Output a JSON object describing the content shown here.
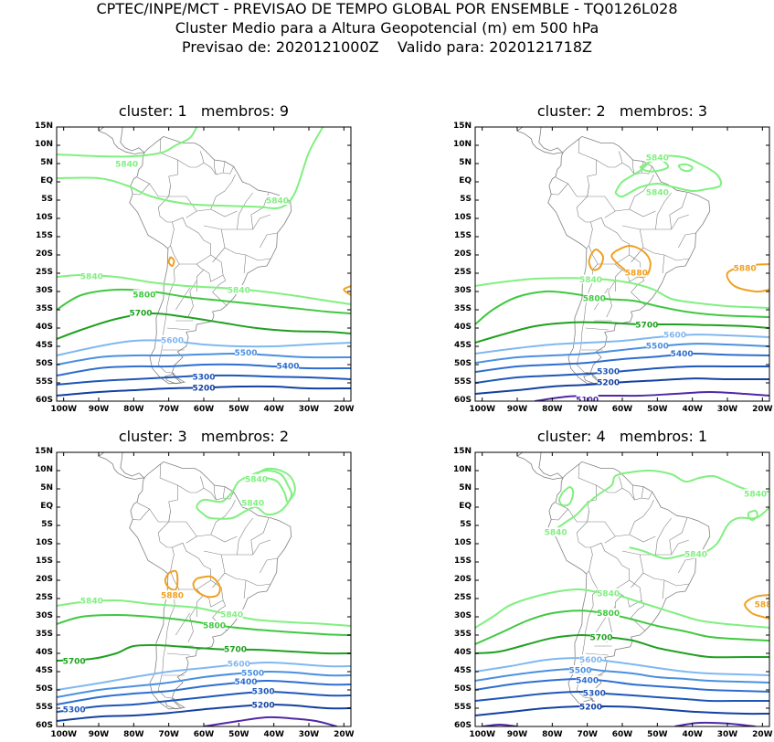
{
  "header": {
    "line1": "CPTEC/INPE/MCT - PREVISAO DE TEMPO GLOBAL POR ENSEMBLE - TQ0126L028",
    "line2": "Cluster Medio para a Altura Geopotencial (m) em 500 hPa",
    "line3": "Previsao de: 2020121000Z    Valido para: 2020121718Z"
  },
  "axes": {
    "lat_labels": [
      "15N",
      "10N",
      "5N",
      "EQ",
      "5S",
      "10S",
      "15S",
      "20S",
      "25S",
      "30S",
      "35S",
      "40S",
      "45S",
      "50S",
      "55S",
      "60S"
    ],
    "lon_labels": [
      "100W",
      "90W",
      "80W",
      "70W",
      "60W",
      "50W",
      "40W",
      "30W",
      "20W"
    ]
  },
  "colors": {
    "c5840": "#80f080",
    "c5800": "#40c840",
    "c5700": "#20a020",
    "c5600": "#80b8f0",
    "c5500": "#4a90e0",
    "c5400": "#2e6ed0",
    "c5300": "#1e56b8",
    "c5200": "#1440a0",
    "c5100": "#5028a8",
    "c5880": "#f0a020",
    "map": "#808080"
  },
  "panels": [
    {
      "title": "cluster: 1   membros: 9",
      "labels": {
        "l5840a": "5840",
        "l5840b": "5840",
        "l5840c": "5840",
        "l5840d": "5840",
        "l5800": "5800",
        "l5700": "5700",
        "l5600": "5600",
        "l5500": "5500",
        "l5400": "5400",
        "l5300": "5300",
        "l5200": "5200"
      }
    },
    {
      "title": "cluster: 2   membros: 3",
      "labels": {
        "l5840a": "5840",
        "l5840b": "5840",
        "l5840c": "5840",
        "l5880a": "5880",
        "l5880b": "5880",
        "l5800": "5800",
        "l5700": "5700",
        "l5600": "5600",
        "l5500": "5500",
        "l5400": "5400",
        "l5300": "5300",
        "l5200": "5200",
        "l5100": "5100"
      }
    },
    {
      "title": "cluster: 3   membros: 2",
      "labels": {
        "l5840a": "5840",
        "l5840b": "5840",
        "l5840c": "5840",
        "l5840d": "5840",
        "l5880": "5880",
        "l5800": "5800",
        "l5700a": "5700",
        "l5700b": "5700",
        "l5600": "5600",
        "l5500": "5500",
        "l5400": "5400",
        "l5300a": "5300",
        "l5300b": "5300",
        "l5200": "5200"
      }
    },
    {
      "title": "cluster: 4   membros: 1",
      "labels": {
        "l5840a": "5840",
        "l5840b": "5840",
        "l5840c": "5840",
        "l5840d": "5840",
        "l5880": "5880",
        "l5800": "5800",
        "l5700": "5700",
        "l5600": "5600",
        "l5500": "5500",
        "l5400": "5400",
        "l5300": "5300",
        "l5200": "5200"
      }
    }
  ]
}
